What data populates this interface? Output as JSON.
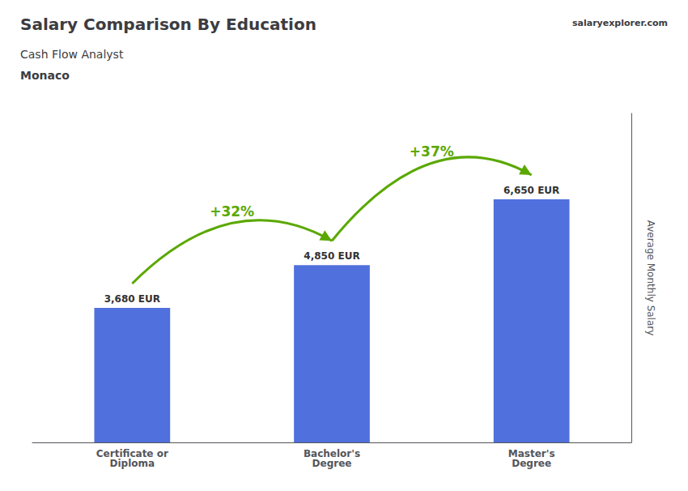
{
  "chart_data": {
    "type": "bar",
    "title": "Salary Comparison By Education",
    "subtitle": [
      "Cash Flow Analyst",
      "Monaco"
    ],
    "categories": [
      "Certificate or\nDiploma",
      "Bachelor's\nDegree",
      "Master's\nDegree"
    ],
    "values": [
      3680,
      4850,
      6650
    ],
    "value_labels": [
      "3,680 EUR",
      "4,850 EUR",
      "6,650 EUR"
    ],
    "data_labels": true,
    "ylabel": "Average Monthly Salary",
    "ylim": [
      0,
      9000
    ],
    "tick_labels": "x",
    "grid": false,
    "annotations": [
      {
        "text": "+32%",
        "from": "Certificate or\nDiploma",
        "to": "Bachelor's\nDegree"
      },
      {
        "text": "+37%",
        "from": "Bachelor's\nDegree",
        "to": "Master's\nDegree"
      },
      {
        "text": "salaryexplorer.com"
      }
    ]
  }
}
